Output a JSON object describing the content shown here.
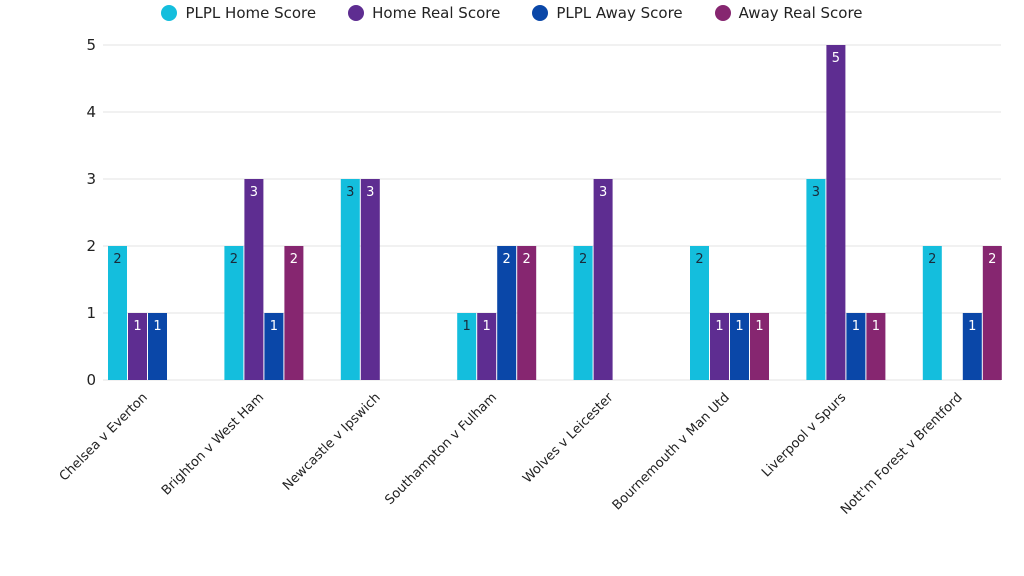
{
  "chart_data": {
    "type": "bar",
    "title": "",
    "xlabel": "",
    "ylabel": "",
    "ylim": [
      0,
      5
    ],
    "yticks": [
      0,
      1,
      2,
      3,
      4,
      5
    ],
    "grid": true,
    "legend_position": "top-center",
    "categories": [
      "Chelsea v Everton",
      "Brighton v West Ham",
      "Newcastle v Ipswich",
      "Southampton v Fulham",
      "Wolves v Leicester",
      "Bournemouth v Man Utd",
      "Liverpool v Spurs",
      "Nott'm Forest v Brentford"
    ],
    "series": [
      {
        "name": "PLPL Home Score",
        "color": "#14BEDD",
        "label_color": "#1a2a3a",
        "values": [
          2,
          2,
          3,
          1,
          2,
          2,
          3,
          2
        ]
      },
      {
        "name": "Home Real Score",
        "color": "#5E2D91",
        "label_color": "#ffffff",
        "values": [
          1,
          3,
          3,
          1,
          3,
          1,
          5,
          0
        ]
      },
      {
        "name": "PLPL Away Score",
        "color": "#0A47A8",
        "label_color": "#ffffff",
        "values": [
          1,
          1,
          0,
          2,
          0,
          1,
          1,
          1
        ]
      },
      {
        "name": "Away Real Score",
        "color": "#862670",
        "label_color": "#ffffff",
        "values": [
          0,
          2,
          0,
          2,
          0,
          1,
          1,
          2
        ]
      }
    ]
  }
}
